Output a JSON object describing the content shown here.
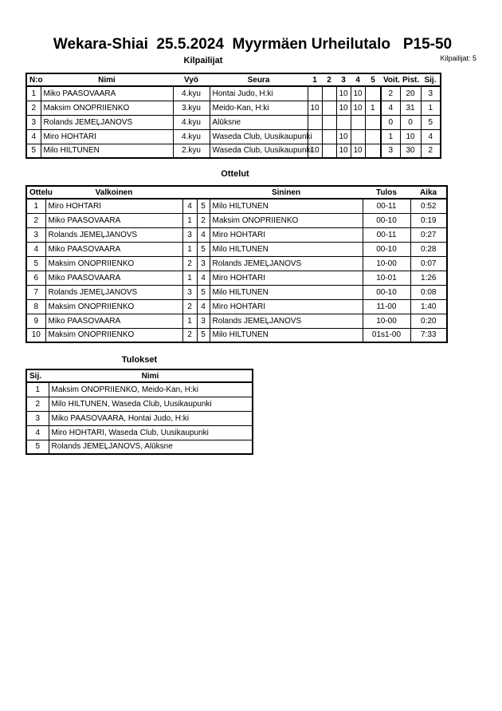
{
  "header": {
    "title": "Wekara-Shiai  25.5.2024  Myyrmäen Urheilutalo   P15-50",
    "competitors_heading": "Kilpailijat",
    "competitors_count": "Kilpailijat: 5",
    "matches_heading": "Ottelut",
    "results_heading": "Tulokset"
  },
  "competitors": {
    "columns": [
      "N:o",
      "Nimi",
      "Vyö",
      "Seura",
      "1",
      "2",
      "3",
      "4",
      "5",
      "Voit.",
      "Pist.",
      "Sij."
    ],
    "rows": [
      [
        "1",
        "Miko PAASOVAARA",
        "4.kyu",
        "Hontai Judo, H:ki",
        "",
        "",
        "10",
        "10",
        "",
        "2",
        "20",
        "3"
      ],
      [
        "2",
        "Maksim ONOPRIIENKO",
        "3.kyu",
        "Meido-Kan, H:ki",
        "10",
        "",
        "10",
        "10",
        "1",
        "4",
        "31",
        "1"
      ],
      [
        "3",
        "Rolands JEMEĻJANOVS",
        "4.kyu",
        "Alūksne",
        "",
        "",
        "",
        "",
        "",
        "0",
        "0",
        "5"
      ],
      [
        "4",
        "Miro HOHTARI",
        "4.kyu",
        "Waseda Club, Uusikaupunki",
        "",
        "",
        "10",
        "",
        "",
        "1",
        "10",
        "4"
      ],
      [
        "5",
        "Milo HILTUNEN",
        "2.kyu",
        "Waseda Club, Uusikaupunki",
        "10",
        "",
        "10",
        "10",
        "",
        "3",
        "30",
        "2"
      ]
    ]
  },
  "matches": {
    "columns": [
      "Ottelu",
      "Valkoinen",
      "",
      "",
      "Sininen",
      "Tulos",
      "Aika"
    ],
    "rows": [
      [
        "1",
        "Miro HOHTARI",
        "4",
        "5",
        "Milo HILTUNEN",
        "00-11",
        "0:52"
      ],
      [
        "2",
        "Miko PAASOVAARA",
        "1",
        "2",
        "Maksim ONOPRIIENKO",
        "00-10",
        "0:19"
      ],
      [
        "3",
        "Rolands JEMEĻJANOVS",
        "3",
        "4",
        "Miro HOHTARI",
        "00-11",
        "0:27"
      ],
      [
        "4",
        "Miko PAASOVAARA",
        "1",
        "5",
        "Milo HILTUNEN",
        "00-10",
        "0:28"
      ],
      [
        "5",
        "Maksim ONOPRIIENKO",
        "2",
        "3",
        "Rolands JEMEĻJANOVS",
        "10-00",
        "0:07"
      ],
      [
        "6",
        "Miko PAASOVAARA",
        "1",
        "4",
        "Miro HOHTARI",
        "10-01",
        "1:26"
      ],
      [
        "7",
        "Rolands JEMEĻJANOVS",
        "3",
        "5",
        "Milo HILTUNEN",
        "00-10",
        "0:08"
      ],
      [
        "8",
        "Maksim ONOPRIIENKO",
        "2",
        "4",
        "Miro HOHTARI",
        "11-00",
        "1:40"
      ],
      [
        "9",
        "Miko PAASOVAARA",
        "1",
        "3",
        "Rolands JEMEĻJANOVS",
        "10-00",
        "0:20"
      ],
      [
        "10",
        "Maksim ONOPRIIENKO",
        "2",
        "5",
        "Milo HILTUNEN",
        "01s1-00",
        "7:33"
      ]
    ]
  },
  "results": {
    "columns": [
      "Sij.",
      "Nimi"
    ],
    "rows": [
      [
        "1",
        "Maksim ONOPRIIENKO, Meido-Kan, H:ki"
      ],
      [
        "2",
        "Milo HILTUNEN, Waseda Club, Uusikaupunki"
      ],
      [
        "3",
        "Miko PAASOVAARA, Hontai Judo, H:ki"
      ],
      [
        "4",
        "Miro HOHTARI, Waseda Club, Uusikaupunki"
      ],
      [
        "5",
        "Rolands JEMEĻJANOVS, Alūksne"
      ]
    ]
  }
}
